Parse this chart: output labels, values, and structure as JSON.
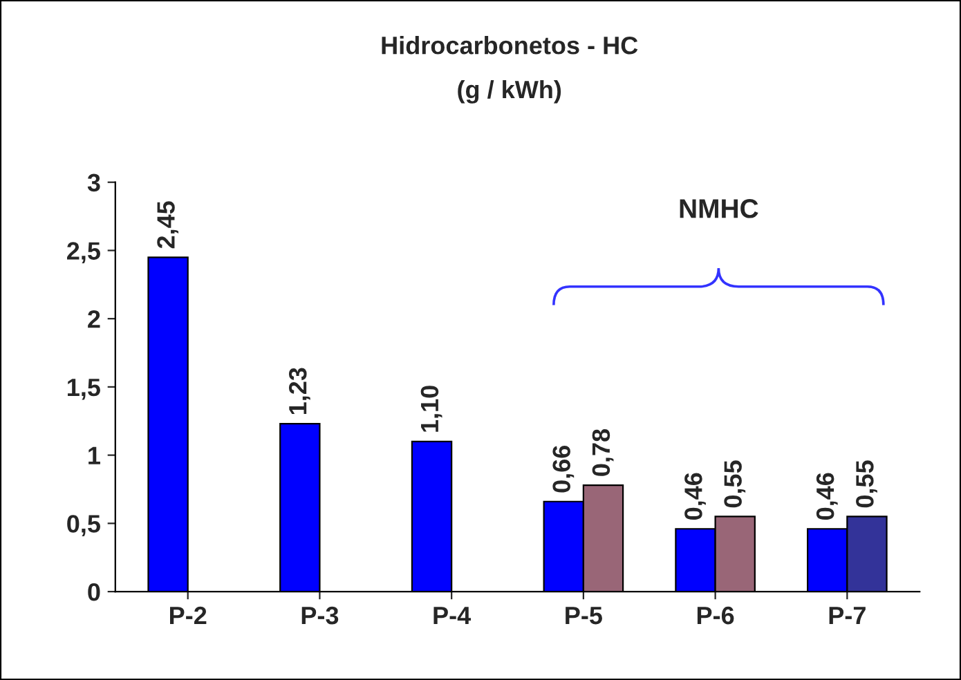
{
  "chart_data": {
    "type": "bar",
    "title": "Hidrocarbonetos - HC",
    "subtitle": "(g / kWh)",
    "categories": [
      "P-2",
      "P-3",
      "P-4",
      "P-5",
      "P-6",
      "P-7"
    ],
    "series": [
      {
        "colors": [
          "#0000ff",
          "#0000ff",
          "#0000ff",
          "#0000ff",
          "#0000ff",
          "#0000ff"
        ],
        "values": [
          2.45,
          1.23,
          1.1,
          0.66,
          0.46,
          0.46
        ],
        "value_labels": [
          "2,45",
          "1,23",
          "1,10",
          "0,66",
          "0,46",
          "0,46"
        ]
      },
      {
        "colors": [
          null,
          null,
          null,
          "#996677",
          "#996677",
          "#333399"
        ],
        "values": [
          null,
          null,
          null,
          0.78,
          0.55,
          0.55
        ],
        "value_labels": [
          null,
          null,
          null,
          "0,78",
          "0,55",
          "0,55"
        ]
      }
    ],
    "ylim": [
      0,
      3
    ],
    "yticks": [
      0,
      {
        "value": 0.5,
        "label": "0,5"
      },
      1,
      {
        "value": 1.5,
        "label": "1,5"
      },
      2,
      {
        "value": 2.5,
        "label": "2,5"
      },
      3
    ],
    "annotations": [
      "NMHC"
    ],
    "grid": false,
    "legend": false
  }
}
